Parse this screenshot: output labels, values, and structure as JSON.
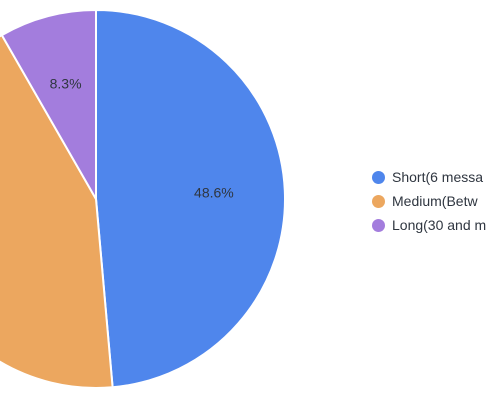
{
  "chart_data": {
    "type": "pie",
    "categories": [
      "Short(6 messa",
      "Medium(Betw",
      "Long(30 and m"
    ],
    "values": [
      48.6,
      43.1,
      8.3
    ],
    "value_labels": [
      "48.6%",
      "",
      "8.3%"
    ],
    "colors": [
      "#4f86ec",
      "#eca75f",
      "#a37ddd"
    ],
    "title": "",
    "legend_position": "right"
  }
}
